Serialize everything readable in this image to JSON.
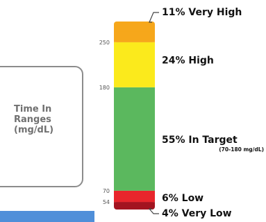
{
  "card": {
    "lines": [
      "Time In",
      "Ranges",
      "(mg/dL)"
    ]
  },
  "chart_data": {
    "type": "bar",
    "segments": [
      {
        "name": "Very Low",
        "percent": 4,
        "label": "4% Very Low",
        "color": "#a31420"
      },
      {
        "name": "Low",
        "percent": 6,
        "label": "6% Low",
        "color": "#e8262c"
      },
      {
        "name": "In Target",
        "percent": 55,
        "label": "55% In Target",
        "sublabel": "(70-180 mg/dL)",
        "color": "#5bb85e"
      },
      {
        "name": "High",
        "percent": 24,
        "label": "24% High",
        "color": "#fbea1c"
      },
      {
        "name": "Very High",
        "percent": 11,
        "label": "11% Very High",
        "color": "#f6a71b"
      }
    ],
    "ticks": [
      "54",
      "70",
      "180",
      "250"
    ]
  }
}
